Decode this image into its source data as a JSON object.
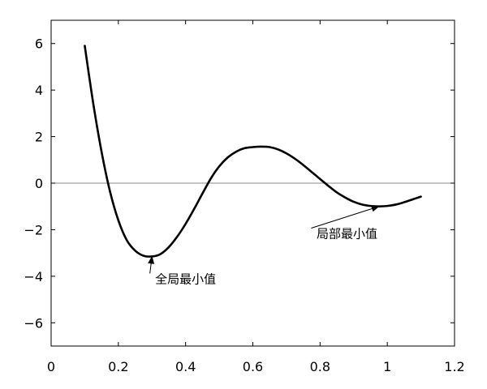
{
  "chart_data": {
    "type": "line",
    "title": "",
    "xlabel": "",
    "ylabel": "",
    "xlim": [
      0,
      1.2
    ],
    "ylim": [
      -7,
      7
    ],
    "xticks": [
      0,
      0.2,
      0.4,
      0.6,
      0.8,
      1,
      1.2
    ],
    "xtick_labels": [
      "0",
      "0.2",
      "0.4",
      "0.6",
      "0.8",
      "1",
      "1.2"
    ],
    "yticks": [
      -6,
      -4,
      -2,
      0,
      2,
      4,
      6
    ],
    "ytick_labels": [
      "−6",
      "−4",
      "−2",
      "0",
      "2",
      "4",
      "6"
    ],
    "grid": false,
    "zero_line": true,
    "series": [
      {
        "color": "#000000",
        "x": [
          0.1,
          0.125,
          0.15,
          0.175,
          0.2,
          0.225,
          0.25,
          0.275,
          0.3,
          0.325,
          0.35,
          0.375,
          0.4,
          0.425,
          0.45,
          0.475,
          0.5,
          0.525,
          0.55,
          0.575,
          0.6,
          0.625,
          0.65,
          0.675,
          0.7,
          0.725,
          0.75,
          0.775,
          0.8,
          0.825,
          0.85,
          0.875,
          0.9,
          0.925,
          0.95,
          0.975,
          1.0,
          1.025,
          1.05,
          1.075,
          1.1
        ],
        "y": [
          5.9,
          3.45,
          1.35,
          -0.35,
          -1.6,
          -2.45,
          -2.9,
          -3.12,
          -3.15,
          -3.05,
          -2.75,
          -2.3,
          -1.75,
          -1.12,
          -0.45,
          0.2,
          0.72,
          1.1,
          1.35,
          1.5,
          1.55,
          1.57,
          1.55,
          1.45,
          1.28,
          1.05,
          0.78,
          0.48,
          0.18,
          -0.12,
          -0.4,
          -0.62,
          -0.8,
          -0.92,
          -0.98,
          -1.0,
          -0.98,
          -0.92,
          -0.82,
          -0.7,
          -0.58
        ]
      }
    ],
    "annotations": [
      {
        "text": "全局最小值",
        "point": [
          0.3,
          -3.15
        ],
        "text_at": [
          0.4,
          -4.3
        ]
      },
      {
        "text": "局部最小值",
        "point": [
          0.975,
          -1.0
        ],
        "text_at": [
          0.88,
          -2.35
        ]
      }
    ]
  }
}
